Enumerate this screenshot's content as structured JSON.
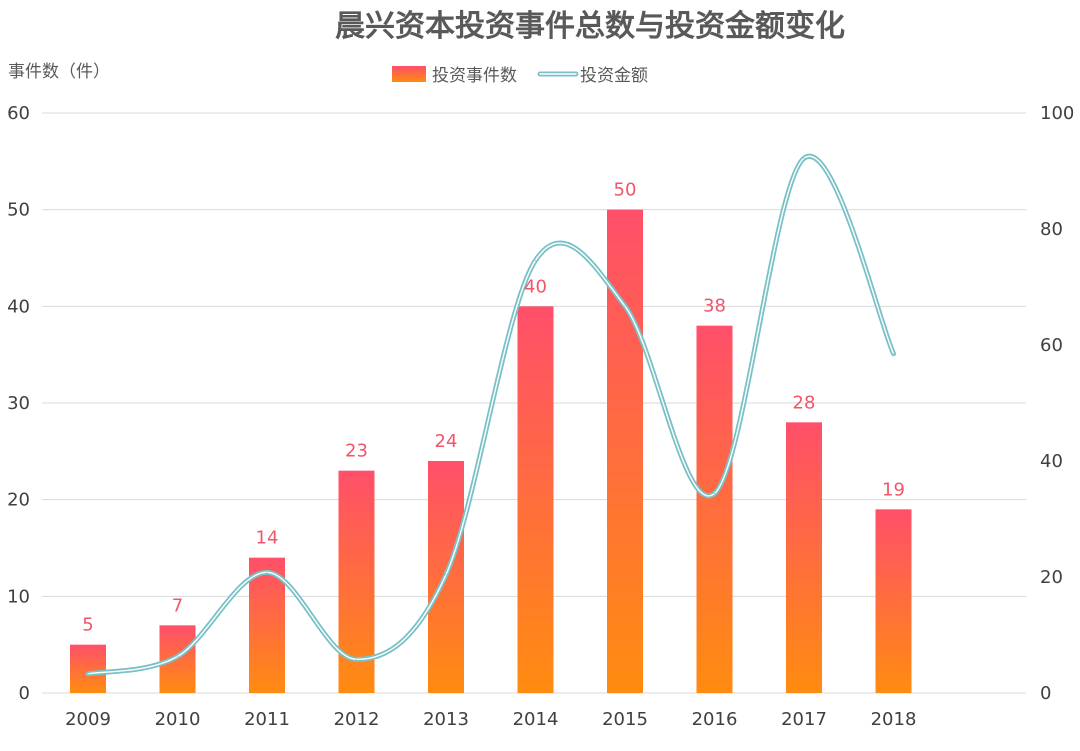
{
  "chart_data": {
    "type": "bar",
    "title": "晨兴资本投资事件总数与投资金额变化",
    "ylabel_left": "事件数（件）",
    "ylabel_right": "",
    "categories": [
      "2009",
      "2010",
      "2011",
      "2012",
      "2013",
      "2014",
      "2015",
      "2016",
      "2017",
      "2018"
    ],
    "series": [
      {
        "name": "投资事件数",
        "type": "bar",
        "axis": "left",
        "values": [
          5,
          7,
          14,
          23,
          24,
          40,
          50,
          38,
          28,
          19
        ],
        "color_top": "#ff4f6a",
        "color_bottom": "#ff8c10"
      },
      {
        "name": "投资金额",
        "type": "line",
        "axis": "right",
        "values": [
          3.3,
          6.3,
          20.8,
          5.8,
          20.4,
          74.6,
          66.7,
          34.4,
          92.2,
          58.5
        ],
        "color": "#7ac1c6"
      }
    ],
    "ylim_left": [
      0,
      60
    ],
    "yticks_left": [
      0,
      10,
      20,
      30,
      40,
      50,
      60
    ],
    "ylim_right": [
      0,
      100
    ],
    "yticks_right": [
      0,
      20,
      40,
      60,
      80,
      100
    ],
    "grid": true,
    "legend_position": "top-center",
    "label_color": "#f2556a"
  }
}
